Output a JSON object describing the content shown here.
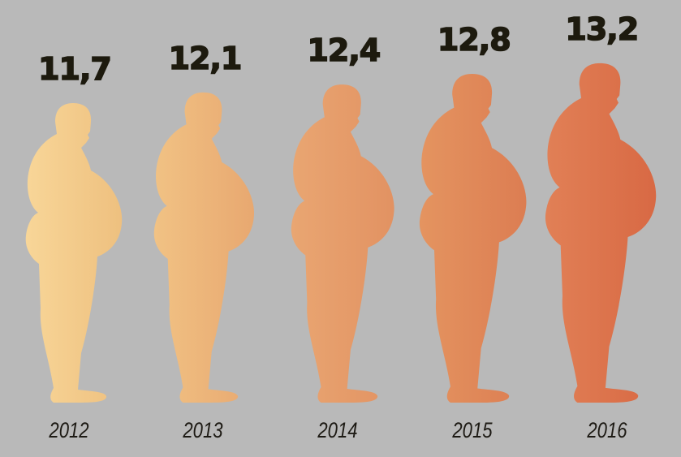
{
  "chart_data": {
    "type": "pictograph",
    "categories": [
      "2012",
      "2013",
      "2014",
      "2015",
      "2016"
    ],
    "values": [
      11.7,
      12.1,
      12.4,
      12.8,
      13.2
    ],
    "value_labels": [
      "11,7",
      "12,1",
      "12,4",
      "12,8",
      "13,2"
    ],
    "mark": "obese-person-silhouette",
    "colors": [
      [
        "#f8d698",
        "#eec07f"
      ],
      [
        "#f1c284",
        "#e8a870"
      ],
      [
        "#e9a672",
        "#e29262"
      ],
      [
        "#e49460",
        "#dc7d52"
      ],
      [
        "#e18056",
        "#d86944"
      ]
    ],
    "background": "#b9b9b9"
  }
}
